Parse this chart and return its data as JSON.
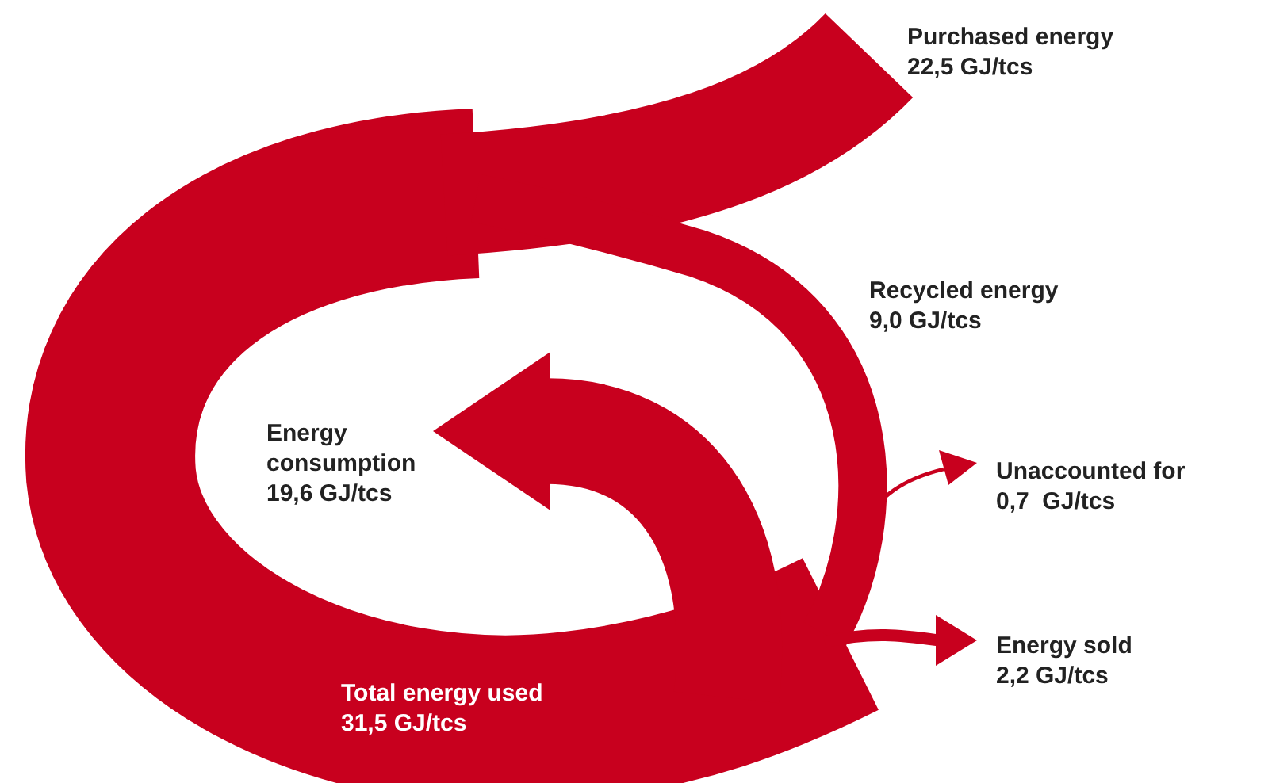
{
  "chart_data": {
    "type": "other",
    "categories": [
      "Purchased energy",
      "Recycled energy",
      "Energy consumption",
      "Unaccounted for",
      "Energy sold",
      "Total energy used"
    ],
    "values": [
      22.5,
      9.0,
      19.6,
      0.7,
      2.2,
      31.5
    ],
    "value_labels": [
      "22,5 GJ/tcs",
      "9,0 GJ/tcs",
      "19,6 GJ/tcs",
      "0,7  GJ/tcs",
      "2,2 GJ/tcs",
      "31,5 GJ/tcs"
    ],
    "color": "#c8001e"
  }
}
